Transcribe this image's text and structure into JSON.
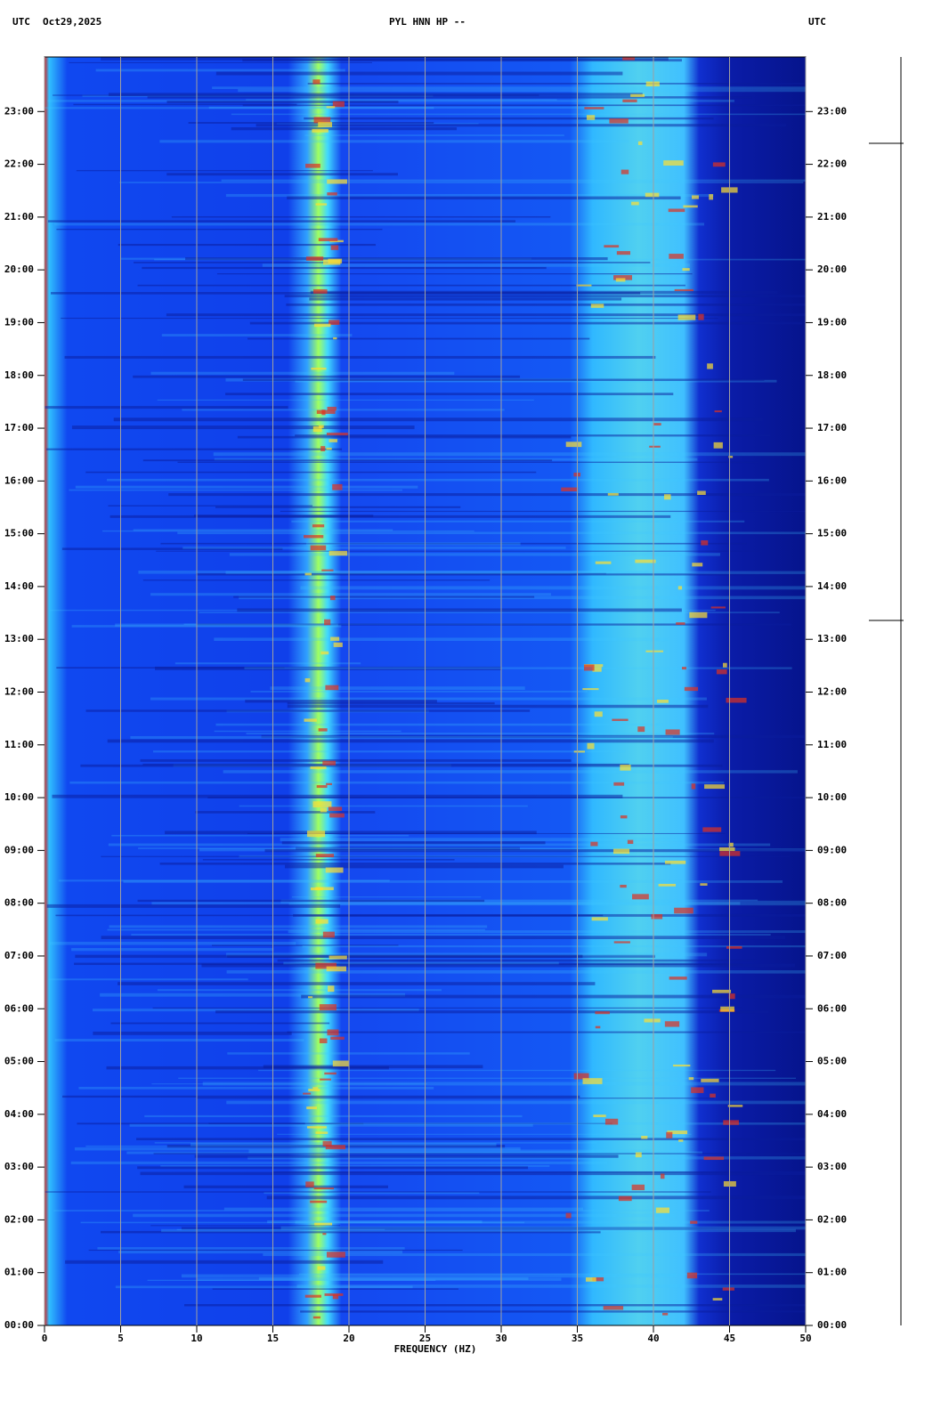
{
  "chart_data": {
    "type": "spectrogram",
    "title": "PYL HNN HP --",
    "timezone_left": "UTC",
    "date": "Oct29,2025",
    "timezone_right": "UTC",
    "x_label": "FREQUENCY (HZ)",
    "xlim": [
      0,
      50
    ],
    "xticks": [
      0,
      5,
      10,
      15,
      20,
      25,
      30,
      35,
      40,
      45,
      50
    ],
    "ylim": [
      0,
      24
    ],
    "yticks": [
      {
        "value": 0,
        "label": "00:00"
      },
      {
        "value": 1,
        "label": "01:00"
      },
      {
        "value": 2,
        "label": "02:00"
      },
      {
        "value": 3,
        "label": "03:00"
      },
      {
        "value": 4,
        "label": "04:00"
      },
      {
        "value": 5,
        "label": "05:00"
      },
      {
        "value": 6,
        "label": "06:00"
      },
      {
        "value": 7,
        "label": "07:00"
      },
      {
        "value": 8,
        "label": "08:00"
      },
      {
        "value": 9,
        "label": "09:00"
      },
      {
        "value": 10,
        "label": "10:00"
      },
      {
        "value": 11,
        "label": "11:00"
      },
      {
        "value": 12,
        "label": "12:00"
      },
      {
        "value": 13,
        "label": "13:00"
      },
      {
        "value": 14,
        "label": "14:00"
      },
      {
        "value": 15,
        "label": "15:00"
      },
      {
        "value": 16,
        "label": "16:00"
      },
      {
        "value": 17,
        "label": "17:00"
      },
      {
        "value": 18,
        "label": "18:00"
      },
      {
        "value": 19,
        "label": "19:00"
      },
      {
        "value": 20,
        "label": "20:00"
      },
      {
        "value": 21,
        "label": "21:00"
      },
      {
        "value": 22,
        "label": "22:00"
      },
      {
        "value": 23,
        "label": "23:00"
      }
    ],
    "grid": true
  }
}
